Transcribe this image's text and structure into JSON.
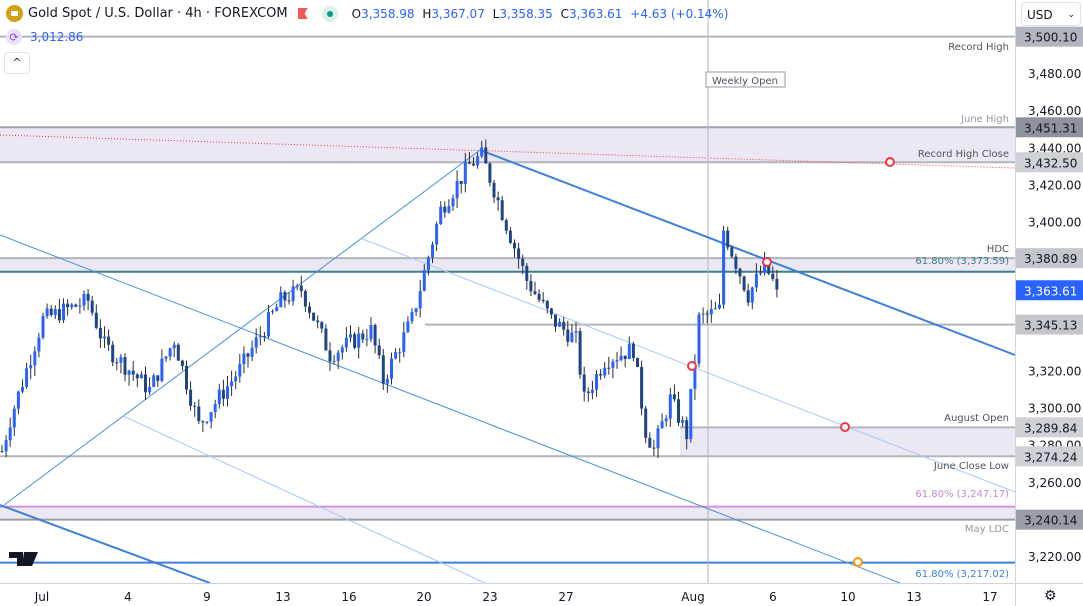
{
  "header": {
    "symbol": "Gold Spot / U.S. Dollar · 4h · FOREXCOM",
    "ohlc": {
      "o_label": "O",
      "o": "3,358.98",
      "h_label": "H",
      "h": "3,367.07",
      "l_label": "L",
      "l": "3,358.35",
      "c_label": "C",
      "c": "3,363.61",
      "change": "+4.63 (+0.14%)"
    },
    "indicator_value": "3,012.86",
    "collapse_icon": "^"
  },
  "currency": {
    "selected": "USD",
    "chevron": "⌄"
  },
  "colors": {
    "up": "#2962ff",
    "down": "#1e4488",
    "level": "#b2b5be",
    "band": "#ebe8f3",
    "teal": "#3b7f8c",
    "trend": "#3d7fd9",
    "purple": "#ce93d8",
    "marker": "#f23645",
    "orange": "#ff9800",
    "last": "#2962ff"
  },
  "price_axis": {
    "ticks": [
      "3,480.00",
      "3,460.00",
      "3,440.00",
      "3,420.00",
      "3,400.00",
      "3,320.00",
      "3,300.00",
      "3,280.00",
      "3,260.00",
      "3,220.00"
    ],
    "tick_values": [
      3480,
      3460,
      3440,
      3420,
      3400,
      3320,
      3300,
      3280,
      3260,
      3220
    ],
    "badges": [
      {
        "text": "3,500.10",
        "value": 3500.1,
        "bg": "#b2b5be",
        "fg": "#131722"
      },
      {
        "text": "3,451.31",
        "value": 3451.31,
        "bg": "#8f939e",
        "fg": "#131722"
      },
      {
        "text": "3,432.50",
        "value": 3432.5,
        "bg": "#cfd1d6",
        "fg": "#131722"
      },
      {
        "text": "3,380.89",
        "value": 3380.89,
        "bg": "#c4c6cc",
        "fg": "#131722"
      },
      {
        "text": "3,363.61",
        "value": 3363.61,
        "bg": "#2962ff",
        "fg": "#ffffff"
      },
      {
        "text": "3,345.13",
        "value": 3345.13,
        "bg": "#c4c6cc",
        "fg": "#131722"
      },
      {
        "text": "3,289.84",
        "value": 3289.84,
        "bg": "#cfd1d6",
        "fg": "#131722"
      },
      {
        "text": "3,274.24",
        "value": 3274.24,
        "bg": "#cfd1d6",
        "fg": "#131722"
      },
      {
        "text": "3,240.14",
        "value": 3240.14,
        "bg": "#9a9da6",
        "fg": "#131722"
      }
    ]
  },
  "time_axis": {
    "labels": [
      "Jul",
      "4",
      "9",
      "13",
      "16",
      "20",
      "23",
      "27",
      "Aug",
      "6",
      "10",
      "13",
      "17"
    ]
  },
  "levels": {
    "record_high": "Record High",
    "june_high": "June High",
    "record_high_close": "Record High Close",
    "hdc": "HDC",
    "fib_3373": "61.80% (3,373.59)",
    "august_open": "August Open",
    "june_close_low": "June Close Low",
    "fib_3247": "61.80% (3,247.17)",
    "may_ldc": "May LDC",
    "fib_3217": "61.80% (3,217.02)",
    "weekly_open": "Weekly Open"
  },
  "chart_data": {
    "type": "candlestick",
    "title": "Gold Spot / U.S. Dollar · 4h · FOREXCOM",
    "ylim": [
      3205,
      3510
    ],
    "waypoints": [
      [
        0,
        3277
      ],
      [
        2,
        3294
      ],
      [
        10,
        3348
      ],
      [
        21,
        3358
      ],
      [
        25,
        3334
      ],
      [
        36,
        3310
      ],
      [
        42,
        3337
      ],
      [
        48,
        3291
      ],
      [
        58,
        3321
      ],
      [
        68,
        3358
      ],
      [
        73,
        3364
      ],
      [
        80,
        3329
      ],
      [
        90,
        3342
      ],
      [
        93,
        3315
      ],
      [
        100,
        3348
      ],
      [
        107,
        3407
      ],
      [
        114,
        3431
      ],
      [
        117,
        3436
      ],
      [
        120,
        3418
      ],
      [
        124,
        3393
      ],
      [
        128,
        3369
      ],
      [
        134,
        3348
      ],
      [
        140,
        3337
      ],
      [
        142,
        3305
      ],
      [
        147,
        3326
      ],
      [
        154,
        3332
      ],
      [
        157,
        3288
      ],
      [
        159,
        3278
      ],
      [
        163,
        3305
      ],
      [
        167,
        3286
      ],
      [
        169,
        3326
      ],
      [
        170,
        3348
      ],
      [
        175,
        3353
      ],
      [
        176,
        3396
      ],
      [
        182,
        3361
      ],
      [
        186,
        3377
      ],
      [
        189,
        3364
      ]
    ]
  }
}
